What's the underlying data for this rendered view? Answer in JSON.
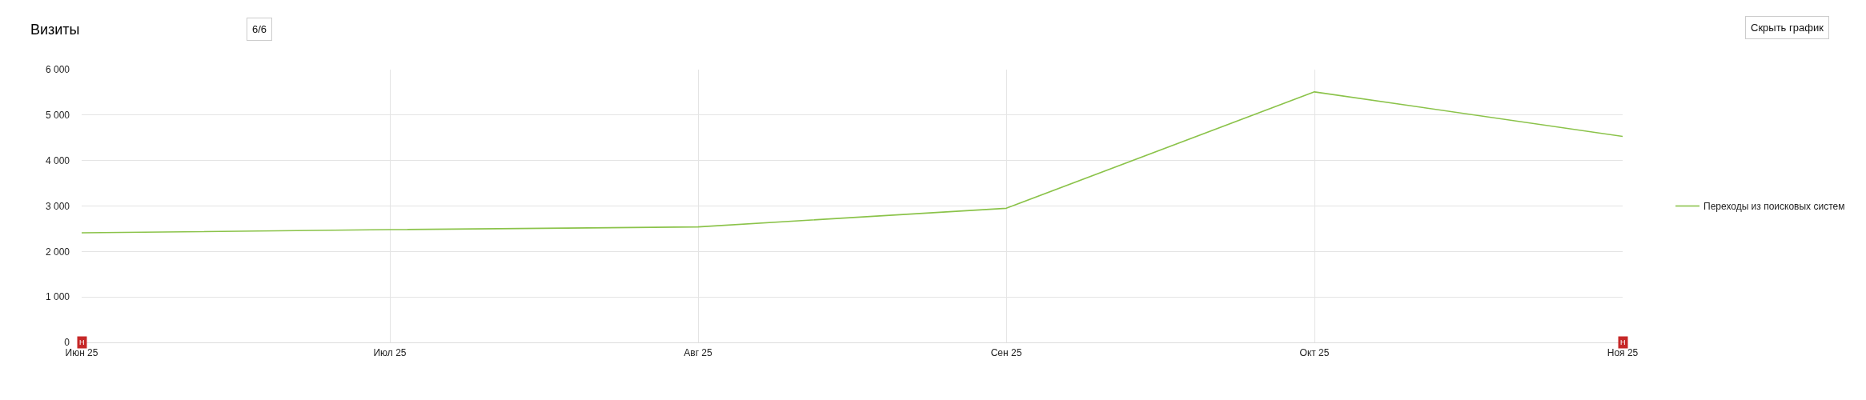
{
  "chart_data": {
    "type": "line",
    "title": "Визиты",
    "categories": [
      "Июн 25",
      "Июл 25",
      "Авг 25",
      "Сен 25",
      "Окт 25",
      "Ноя 25"
    ],
    "series": [
      {
        "name": "Переходы из поисковых систем",
        "color": "#8bc34a",
        "values": [
          2410,
          2480,
          2540,
          2950,
          5510,
          4530
        ]
      }
    ],
    "ylim": [
      0,
      6000
    ],
    "yticks": [
      0,
      {
        "value": 1000,
        "label": "1 000"
      },
      {
        "value": 2000,
        "label": "2 000"
      },
      {
        "value": 3000,
        "label": "3 000"
      },
      {
        "value": 4000,
        "label": "4 000"
      },
      {
        "value": 5000,
        "label": "5 000"
      },
      {
        "value": 6000,
        "label": "6 000"
      }
    ],
    "grid": true,
    "legend": "right",
    "annotations": [
      "6/6",
      "Скрыть график",
      {
        "text": "Н",
        "x": "Июн 25",
        "y": 0
      },
      {
        "text": "Н",
        "x": "Ноя 25",
        "y": 0
      }
    ]
  }
}
